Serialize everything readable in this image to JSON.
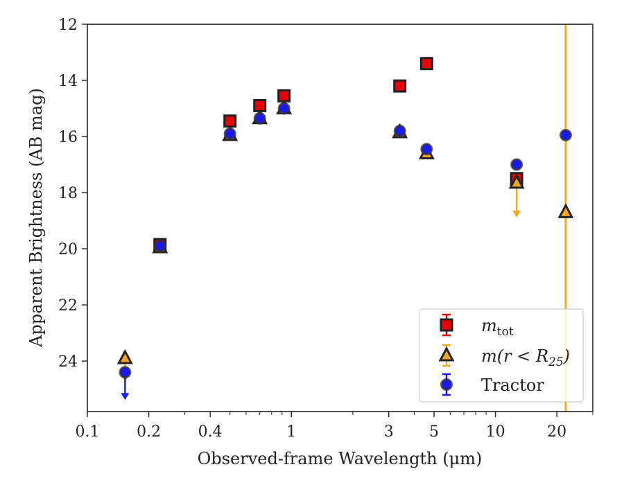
{
  "chart_data": {
    "type": "scatter",
    "title": "",
    "xlabel": "Observed-frame Wavelength (μm)",
    "ylabel": "Apparent Brightness (AB mag)",
    "xscale": "log",
    "xlim": [
      0.1,
      30
    ],
    "ylim": [
      25.8,
      12
    ],
    "y_inverted": true,
    "x_ticks": [
      0.1,
      0.2,
      0.4,
      1,
      3,
      5,
      10,
      20
    ],
    "x_tick_labels": [
      "0.1",
      "0.2",
      "0.4",
      "1",
      "3",
      "5",
      "10",
      "20"
    ],
    "y_ticks": [
      12,
      14,
      16,
      18,
      20,
      22,
      24
    ],
    "y_tick_labels": [
      "12",
      "14",
      "16",
      "18",
      "20",
      "22",
      "24"
    ],
    "grid": false,
    "legend_position": "bottom-right",
    "colors": {
      "mtot": "#e8000b",
      "mr25": "#f5a623",
      "tractor": "#1a1aee",
      "edge": "#222222",
      "vline": "#f5a623"
    },
    "vertical_line_x": 22.1,
    "series": [
      {
        "id": "mtot",
        "name": "m_tot",
        "legend_text": "m",
        "legend_sub": "tot",
        "marker": "square",
        "points": [
          {
            "x": 0.227,
            "y": 19.85
          },
          {
            "x": 0.5,
            "y": 15.45
          },
          {
            "x": 0.7,
            "y": 14.9
          },
          {
            "x": 0.92,
            "y": 14.55
          },
          {
            "x": 3.4,
            "y": 14.2
          },
          {
            "x": 4.6,
            "y": 13.4
          },
          {
            "x": 12.7,
            "y": 17.5
          }
        ]
      },
      {
        "id": "mr25",
        "name": "m(r < R_25)",
        "legend_text": "m(r < R",
        "legend_sub": "25",
        "legend_tail": ")",
        "marker": "triangle",
        "points": [
          {
            "x": 0.153,
            "y": 23.9,
            "upper_limit": true
          },
          {
            "x": 0.227,
            "y": 19.95
          },
          {
            "x": 0.5,
            "y": 15.95
          },
          {
            "x": 0.7,
            "y": 15.35
          },
          {
            "x": 0.92,
            "y": 15.0
          },
          {
            "x": 3.4,
            "y": 15.85
          },
          {
            "x": 4.6,
            "y": 16.6
          },
          {
            "x": 12.7,
            "y": 17.65,
            "upper_limit": true
          },
          {
            "x": 22.1,
            "y": 18.7
          }
        ]
      },
      {
        "id": "tractor",
        "name": "Tractor",
        "legend_text": "Tractor",
        "marker": "circle",
        "points": [
          {
            "x": 0.153,
            "y": 24.4,
            "upper_limit": true
          },
          {
            "x": 0.227,
            "y": 19.9
          },
          {
            "x": 0.5,
            "y": 15.9
          },
          {
            "x": 0.7,
            "y": 15.35
          },
          {
            "x": 0.92,
            "y": 15.0
          },
          {
            "x": 3.4,
            "y": 15.8
          },
          {
            "x": 4.6,
            "y": 16.45
          },
          {
            "x": 12.7,
            "y": 17.0
          },
          {
            "x": 22.1,
            "y": 15.95
          }
        ]
      }
    ]
  }
}
